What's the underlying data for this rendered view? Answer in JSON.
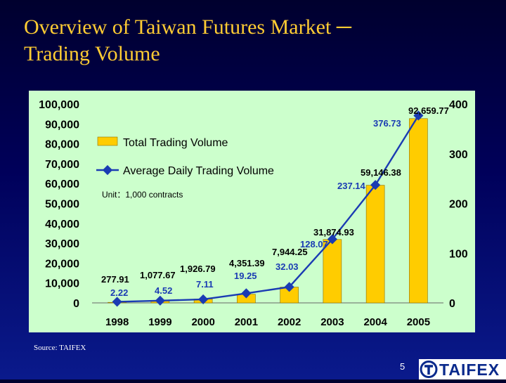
{
  "slide": {
    "title_line1": "Overview of Taiwan Futures Market ─",
    "title_line2": "Trading Volume",
    "source": "Source: TAIFEX",
    "page_number": "5",
    "logo_text": "TAIFEX"
  },
  "colors": {
    "background": "#00004a",
    "title": "#ffcc33",
    "plot_background": "#ccffcc",
    "bar_fill": "#ffcc00",
    "line": "#1a3bb3",
    "line_label": "#1a3bb3"
  },
  "chart_data": {
    "type": "bar",
    "title": "",
    "unit_note": "Unit：1,000 contracts",
    "categories": [
      "1998",
      "1999",
      "2000",
      "2001",
      "2002",
      "2003",
      "2004",
      "2005"
    ],
    "series": [
      {
        "name": "Total Trading Volume",
        "type": "bar",
        "axis": "left",
        "values": [
          277.91,
          1077.67,
          1926.79,
          4351.39,
          7944.25,
          31874.93,
          59146.38,
          92659.77
        ],
        "labels": [
          "277.91",
          "1,077.67",
          "1,926.79",
          "4,351.39",
          "7,944.25",
          "31,874.93",
          "59,146.38",
          "92,659.77"
        ]
      },
      {
        "name": "Average Daily Trading Volume",
        "type": "line",
        "axis": "right",
        "values": [
          2.22,
          4.52,
          7.11,
          19.25,
          32.03,
          128.07,
          237.14,
          376.73
        ],
        "labels": [
          "2.22",
          "4.52",
          "7.11",
          "19.25",
          "32.03",
          "128.07",
          "237.14",
          "376.73"
        ]
      }
    ],
    "y_left": {
      "ylim": [
        0,
        100000
      ],
      "ticks": [
        "0",
        "10,000",
        "20,000",
        "30,000",
        "40,000",
        "50,000",
        "60,000",
        "70,000",
        "80,000",
        "90,000",
        "100,000"
      ]
    },
    "y_right": {
      "ylim": [
        0,
        400
      ],
      "ticks": [
        "0",
        "100",
        "200",
        "300",
        "400"
      ]
    },
    "legend": "top-left",
    "grid": false
  }
}
